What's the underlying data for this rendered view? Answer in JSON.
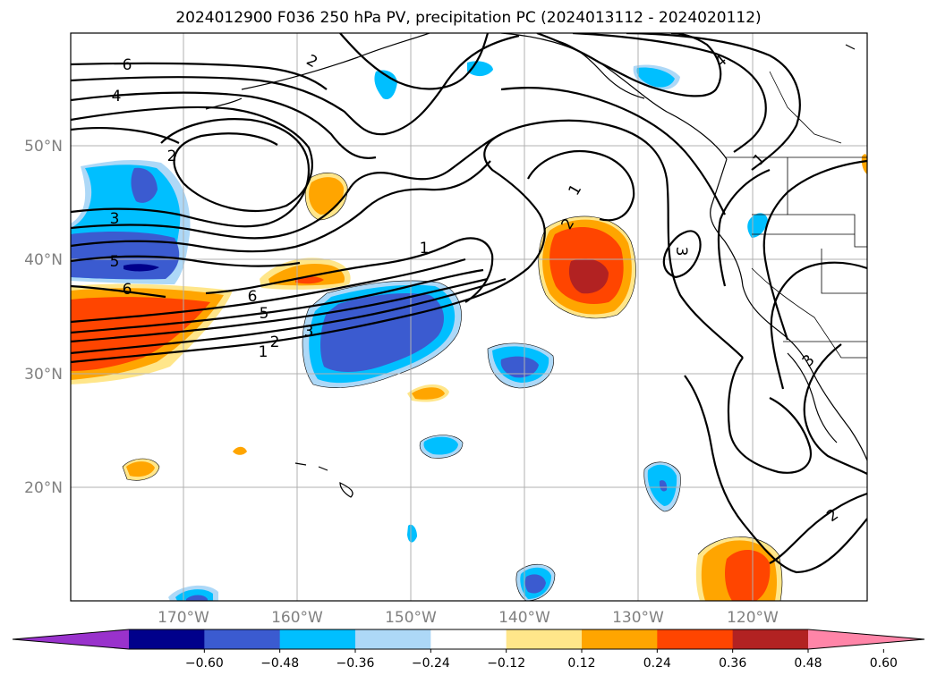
{
  "title": "2024012900 F036 250 hPa PV, precipitation PC (2024013112 - 2024020112)",
  "lat_labels": [
    "50°N",
    "40°N",
    "30°N",
    "20°N"
  ],
  "lon_labels": [
    "170°W",
    "160°W",
    "150°W",
    "140°W",
    "130°W",
    "120°W"
  ],
  "contour_labels": [
    "6",
    "4",
    "2",
    "3",
    "5",
    "6",
    "6",
    "5",
    "3",
    "2",
    "1",
    "1",
    "1",
    "2",
    "3",
    "4",
    "1",
    "2",
    "3",
    "2"
  ],
  "colorbar": {
    "tick_labels": [
      "−0.60",
      "−0.48",
      "−0.36",
      "−0.24",
      "−0.12",
      "0.12",
      "0.24",
      "0.36",
      "0.48",
      "0.60"
    ],
    "colors": [
      "#9932cc",
      "#00008b",
      "#3b5bd0",
      "#00bfff",
      "#add8f7",
      "#ffffff",
      "#ffe68a",
      "#ffa500",
      "#ff4500",
      "#b22222",
      "#ff85a8"
    ]
  },
  "palette": {
    "neg_light": "#add8f7",
    "neg_mid": "#00bfff",
    "neg_strong": "#3b5bd0",
    "neg_max": "#00008b",
    "pos_light": "#ffe68a",
    "pos_mid": "#ffa500",
    "pos_strong": "#ff4500",
    "pos_max": "#b22222"
  }
}
